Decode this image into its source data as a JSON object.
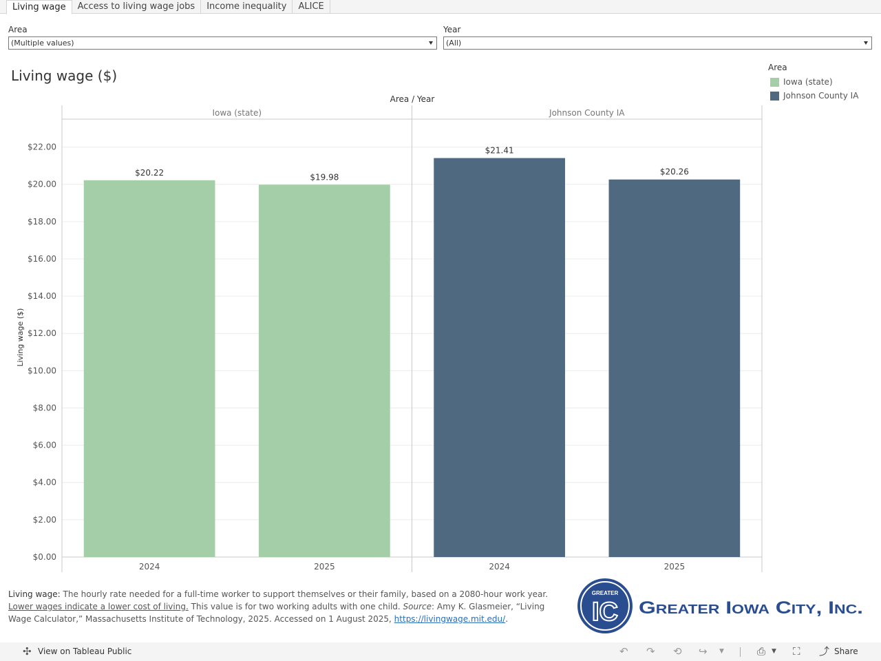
{
  "tabs": [
    {
      "label": "Living wage",
      "active": true
    },
    {
      "label": "Access to living wage jobs",
      "active": false
    },
    {
      "label": "Income inequality",
      "active": false
    },
    {
      "label": "ALICE",
      "active": false
    }
  ],
  "filters": {
    "area": {
      "label": "Area",
      "value": "(Multiple values)"
    },
    "year": {
      "label": "Year",
      "value": "(All)"
    }
  },
  "title": "Living wage ($)",
  "legend": {
    "title": "Area",
    "items": [
      {
        "label": "Iowa (state)",
        "color": "#a3cea8"
      },
      {
        "label": "Johnson County IA",
        "color": "#4f6980"
      }
    ]
  },
  "chart_data": {
    "type": "bar",
    "header": "Area / Year",
    "ylabel": "Living wage ($)",
    "ylim": [
      0,
      23.5
    ],
    "yticks": [
      "$0.00",
      "$2.00",
      "$4.00",
      "$6.00",
      "$8.00",
      "$10.00",
      "$12.00",
      "$14.00",
      "$16.00",
      "$18.00",
      "$20.00",
      "$22.00"
    ],
    "ytick_values": [
      0,
      2,
      4,
      6,
      8,
      10,
      12,
      14,
      16,
      18,
      20,
      22
    ],
    "grid": true,
    "legend_position": "top-right",
    "panels": [
      {
        "name": "Iowa (state)",
        "color": "#a3cea8",
        "categories": [
          "2024",
          "2025"
        ],
        "values": [
          20.22,
          19.98
        ],
        "labels": [
          "$20.22",
          "$19.98"
        ]
      },
      {
        "name": "Johnson County IA",
        "color": "#4f6980",
        "categories": [
          "2024",
          "2025"
        ],
        "values": [
          21.41,
          20.26
        ],
        "labels": [
          "$21.41",
          "$20.26"
        ]
      }
    ]
  },
  "note": {
    "term": "Living wage",
    "sep": ":",
    "text1": " The hourly rate needed for a full-time worker to support themselves or their family, based on a 2080-hour work year. ",
    "underlined": "Lower wages indicate a lower cost of living.",
    "text2": " This value is for two working adults with one child. ",
    "source_label": "Source",
    "text3": ": Amy K. Glasmeier, “Living Wage Calculator,” Massachusetts Institute of Technology, 2025. Accessed on 1 August 2025, ",
    "link": "https://livingwage.mit.edu/",
    "text4": "."
  },
  "logo": {
    "badge_small": "GREATER",
    "badge_big": "IC",
    "wordmark": "Greater Iowa City, Inc.",
    "color": "#2a4d8f"
  },
  "toolbar": {
    "view_label": "View on Tableau Public",
    "share_label": "Share",
    "icons": [
      "tableau-icon",
      "undo-icon",
      "redo-icon",
      "revert-icon",
      "refresh-icon",
      "download-icon",
      "fullscreen-icon",
      "share-icon"
    ]
  }
}
